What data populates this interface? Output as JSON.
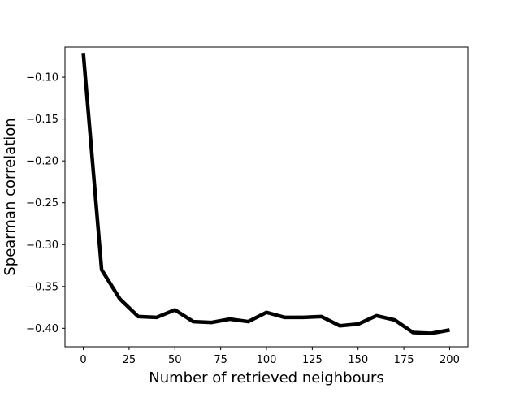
{
  "chart_data": {
    "type": "line",
    "title": "",
    "xlabel": "Number of retrieved neighbours",
    "ylabel": "Spearman correlation",
    "xlim": [
      -10,
      210
    ],
    "ylim": [
      -0.422,
      -0.064
    ],
    "xticks": [
      0,
      25,
      50,
      75,
      100,
      125,
      150,
      175,
      200
    ],
    "xtick_labels": [
      "0",
      "25",
      "50",
      "75",
      "100",
      "125",
      "150",
      "175",
      "200"
    ],
    "yticks": [
      -0.1,
      -0.15,
      -0.2,
      -0.25,
      -0.3,
      -0.35,
      -0.4
    ],
    "ytick_labels": [
      "−0.10",
      "−0.15",
      "−0.20",
      "−0.25",
      "−0.30",
      "−0.35",
      "−0.40"
    ],
    "grid": false,
    "line_color": "#000000",
    "series": [
      {
        "x": [
          0,
          10,
          20,
          30,
          40,
          50,
          60,
          70,
          80,
          90,
          100,
          110,
          120,
          130,
          140,
          150,
          160,
          170,
          180,
          190,
          200
        ],
        "values": [
          -0.071,
          -0.33,
          -0.365,
          -0.386,
          -0.387,
          -0.378,
          -0.392,
          -0.393,
          -0.389,
          -0.392,
          -0.381,
          -0.387,
          -0.387,
          -0.386,
          -0.397,
          -0.395,
          -0.385,
          -0.39,
          -0.405,
          -0.406,
          -0.402
        ]
      }
    ]
  }
}
